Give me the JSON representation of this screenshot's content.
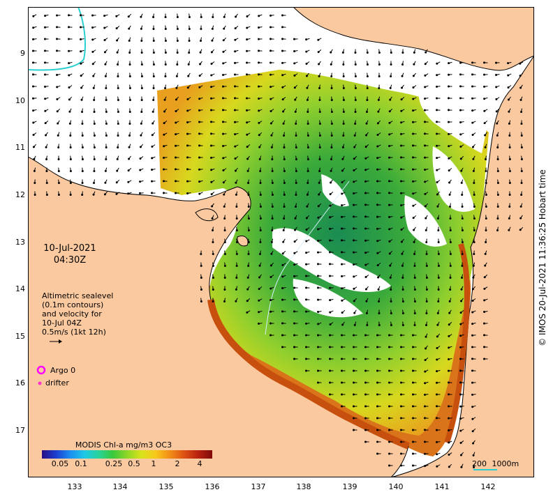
{
  "map": {
    "lat_ticks": [
      "9",
      "10",
      "11",
      "12",
      "13",
      "14",
      "15",
      "16",
      "17"
    ],
    "lon_ticks": [
      "133",
      "134",
      "135",
      "136",
      "137",
      "138",
      "139",
      "140",
      "141",
      "142"
    ],
    "datetime_line1": "10-Jul-2021",
    "datetime_line2": "04:30Z",
    "altimetry_caption": [
      "Altimetric sealevel",
      "(0.1m contours)",
      "and velocity for",
      "10-Jul 04Z",
      "0.5m/s (1kt 12h)"
    ],
    "legend": {
      "argo_label": "Argo 0",
      "drifter_label": "drifter",
      "argo_color": "#ff00ff",
      "drifter_color": "#ff33cc"
    },
    "colorbar": {
      "title": "MODIS Chl-a mg/m3 OC3",
      "ticks": [
        "0.05",
        "0.1",
        "0.25",
        "0.5",
        "1",
        "2",
        "4"
      ]
    },
    "scalebar": {
      "label_left": "200",
      "label_right": "1000m"
    },
    "credit": "© IMOS 20-Jul-2021 11:36:25 Hobart time",
    "colors": {
      "land": "#fbc99f",
      "coast": "#000000",
      "no_data": "#ffffff",
      "chl_low": "#1f8c4a",
      "chl_mid": "#9fd23a",
      "chl_high": "#e4621a"
    }
  }
}
